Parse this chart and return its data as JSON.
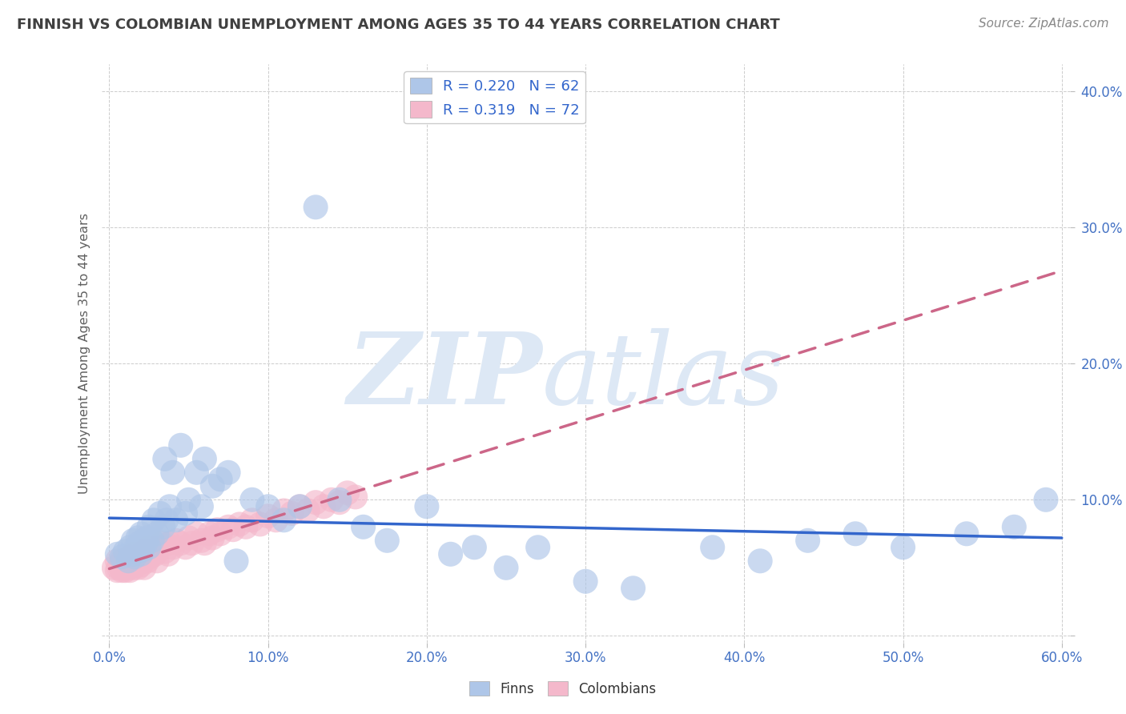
{
  "title": "FINNISH VS COLOMBIAN UNEMPLOYMENT AMONG AGES 35 TO 44 YEARS CORRELATION CHART",
  "source": "Source: ZipAtlas.com",
  "ylabel": "Unemployment Among Ages 35 to 44 years",
  "xlim": [
    -0.005,
    0.605
  ],
  "ylim": [
    -0.005,
    0.42
  ],
  "xtick_vals": [
    0.0,
    0.1,
    0.2,
    0.3,
    0.4,
    0.5,
    0.6
  ],
  "ytick_vals": [
    0.0,
    0.1,
    0.2,
    0.3,
    0.4
  ],
  "xtick_labels": [
    "0.0%",
    "10.0%",
    "20.0%",
    "30.0%",
    "40.0%",
    "50.0%",
    "60.0%"
  ],
  "ytick_labels": [
    "",
    "10.0%",
    "20.0%",
    "30.0%",
    "40.0%"
  ],
  "finns_R": 0.22,
  "finns_N": 62,
  "colombians_R": 0.319,
  "colombians_N": 72,
  "finns_color": "#aec6e8",
  "colombians_color": "#f4b8cb",
  "finns_line_color": "#3366cc",
  "colombians_line_color": "#cc6688",
  "title_color": "#404040",
  "source_color": "#888888",
  "tick_color_y": "#4472c4",
  "tick_color_x": "#4472c4",
  "grid_color": "#cccccc",
  "watermark_zip_color": "#dde8f5",
  "watermark_atlas_color": "#dde8f5",
  "finns_x": [
    0.005,
    0.008,
    0.01,
    0.012,
    0.013,
    0.015,
    0.015,
    0.016,
    0.017,
    0.018,
    0.019,
    0.02,
    0.02,
    0.021,
    0.022,
    0.023,
    0.024,
    0.025,
    0.025,
    0.027,
    0.028,
    0.03,
    0.032,
    0.034,
    0.035,
    0.036,
    0.038,
    0.04,
    0.042,
    0.045,
    0.048,
    0.05,
    0.055,
    0.058,
    0.06,
    0.065,
    0.07,
    0.075,
    0.08,
    0.09,
    0.1,
    0.11,
    0.12,
    0.13,
    0.145,
    0.16,
    0.175,
    0.2,
    0.215,
    0.23,
    0.25,
    0.27,
    0.3,
    0.33,
    0.38,
    0.41,
    0.44,
    0.47,
    0.5,
    0.54,
    0.57,
    0.59
  ],
  "finns_y": [
    0.06,
    0.058,
    0.062,
    0.055,
    0.065,
    0.06,
    0.07,
    0.058,
    0.065,
    0.072,
    0.068,
    0.06,
    0.075,
    0.063,
    0.07,
    0.068,
    0.072,
    0.065,
    0.08,
    0.07,
    0.085,
    0.075,
    0.09,
    0.08,
    0.13,
    0.085,
    0.095,
    0.12,
    0.085,
    0.14,
    0.09,
    0.1,
    0.12,
    0.095,
    0.13,
    0.11,
    0.115,
    0.12,
    0.055,
    0.1,
    0.095,
    0.085,
    0.095,
    0.315,
    0.1,
    0.08,
    0.07,
    0.095,
    0.06,
    0.065,
    0.05,
    0.065,
    0.04,
    0.035,
    0.065,
    0.055,
    0.07,
    0.075,
    0.065,
    0.075,
    0.08,
    0.1
  ],
  "colombians_x": [
    0.003,
    0.005,
    0.005,
    0.006,
    0.007,
    0.008,
    0.008,
    0.009,
    0.01,
    0.01,
    0.011,
    0.012,
    0.012,
    0.013,
    0.013,
    0.014,
    0.015,
    0.015,
    0.016,
    0.017,
    0.018,
    0.018,
    0.019,
    0.02,
    0.02,
    0.021,
    0.022,
    0.022,
    0.023,
    0.024,
    0.025,
    0.025,
    0.026,
    0.028,
    0.029,
    0.03,
    0.032,
    0.033,
    0.035,
    0.037,
    0.038,
    0.04,
    0.042,
    0.045,
    0.048,
    0.05,
    0.052,
    0.055,
    0.058,
    0.06,
    0.063,
    0.065,
    0.068,
    0.07,
    0.075,
    0.078,
    0.082,
    0.086,
    0.09,
    0.095,
    0.1,
    0.105,
    0.11,
    0.115,
    0.12,
    0.125,
    0.13,
    0.135,
    0.14,
    0.145,
    0.15,
    0.155
  ],
  "colombians_y": [
    0.05,
    0.048,
    0.055,
    0.05,
    0.052,
    0.048,
    0.055,
    0.05,
    0.048,
    0.055,
    0.052,
    0.05,
    0.055,
    0.048,
    0.058,
    0.052,
    0.05,
    0.06,
    0.055,
    0.052,
    0.05,
    0.058,
    0.055,
    0.052,
    0.06,
    0.055,
    0.05,
    0.062,
    0.058,
    0.055,
    0.06,
    0.065,
    0.058,
    0.062,
    0.06,
    0.055,
    0.065,
    0.068,
    0.062,
    0.06,
    0.068,
    0.065,
    0.07,
    0.068,
    0.065,
    0.072,
    0.068,
    0.075,
    0.07,
    0.068,
    0.075,
    0.072,
    0.078,
    0.075,
    0.08,
    0.078,
    0.082,
    0.08,
    0.085,
    0.082,
    0.088,
    0.085,
    0.092,
    0.09,
    0.095,
    0.092,
    0.098,
    0.095,
    0.1,
    0.098,
    0.105,
    0.102
  ]
}
